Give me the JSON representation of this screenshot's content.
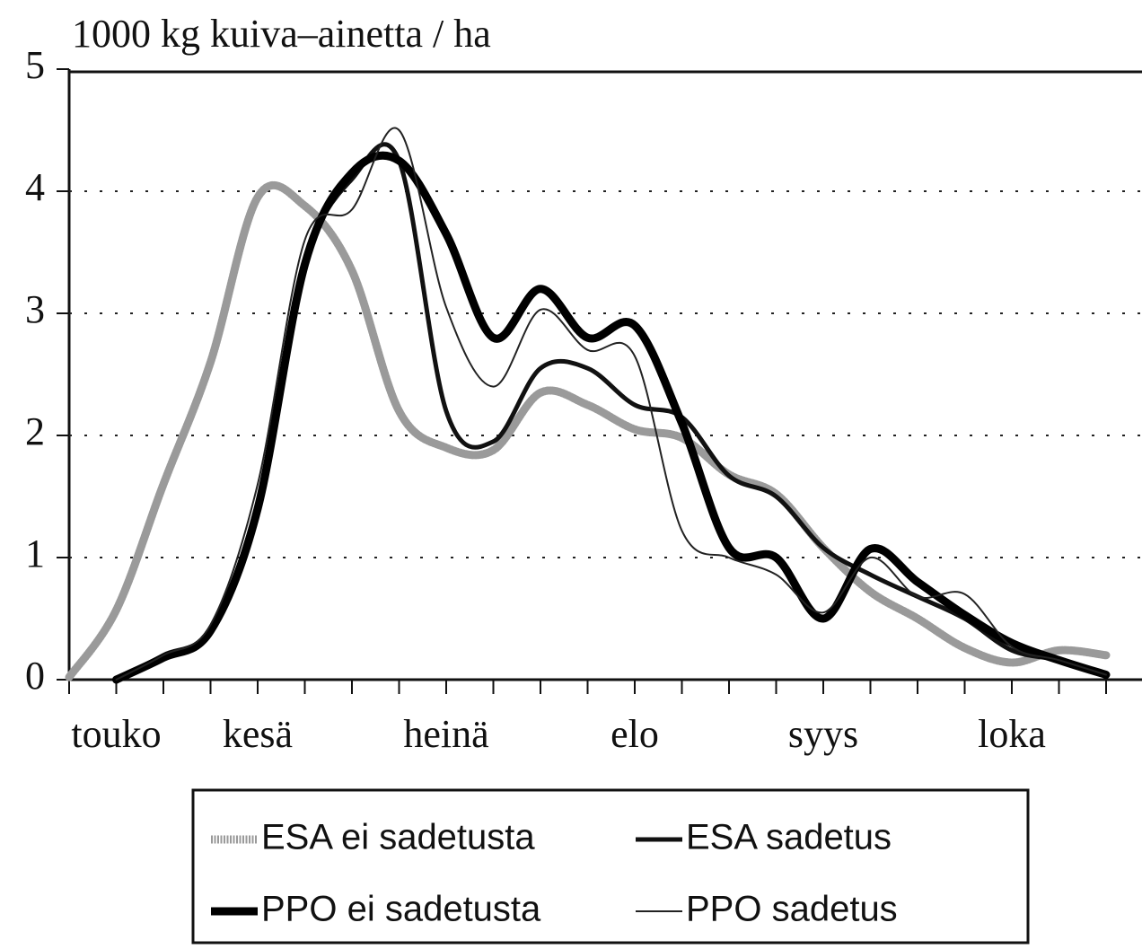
{
  "chart_data": {
    "type": "line",
    "title": "1000 kg kuiva–ainetta / ha",
    "categories": [
      null,
      "touko",
      null,
      null,
      "kesä",
      null,
      null,
      null,
      "heinä",
      null,
      null,
      null,
      "elo",
      null,
      null,
      null,
      "syys",
      null,
      null,
      null,
      "loka",
      null,
      null
    ],
    "ylim": [
      0,
      5
    ],
    "yticks": [
      0,
      1,
      2,
      3,
      4,
      5
    ],
    "grid": true,
    "series": [
      {
        "name": "ESA ei sadetusta",
        "color": "#9a9a9a",
        "values": [
          0.02,
          0.57,
          1.6,
          2.6,
          3.95,
          3.88,
          3.35,
          2.2,
          1.9,
          1.88,
          2.35,
          2.25,
          2.05,
          1.98,
          1.68,
          1.52,
          1.08,
          0.72,
          0.5,
          0.26,
          0.14,
          0.24,
          0.2
        ]
      },
      {
        "name": "ESA sadetus",
        "color": "#111111",
        "values": [
          null,
          0.0,
          0.2,
          0.42,
          1.45,
          3.4,
          4.1,
          4.25,
          2.2,
          1.95,
          2.55,
          2.55,
          2.25,
          2.15,
          1.67,
          1.5,
          1.08,
          0.86,
          0.68,
          0.5,
          0.24,
          0.16,
          0.04
        ]
      },
      {
        "name": "PPO ei sadetusta",
        "color": "#000000",
        "values": [
          null,
          0.0,
          0.18,
          0.4,
          1.4,
          3.4,
          4.15,
          4.25,
          3.65,
          2.8,
          3.2,
          2.8,
          2.9,
          2.1,
          1.08,
          1.0,
          0.5,
          1.07,
          0.8,
          0.53,
          0.3,
          0.16,
          0.04
        ]
      },
      {
        "name": "PPO sadetus",
        "color": "#222222",
        "values": [
          null,
          0.0,
          0.2,
          0.45,
          1.6,
          3.6,
          3.85,
          4.5,
          3.05,
          2.4,
          3.03,
          2.7,
          2.65,
          1.22,
          1.0,
          0.86,
          0.55,
          1.0,
          0.68,
          0.7,
          0.27,
          0.16,
          0.04
        ]
      }
    ]
  }
}
